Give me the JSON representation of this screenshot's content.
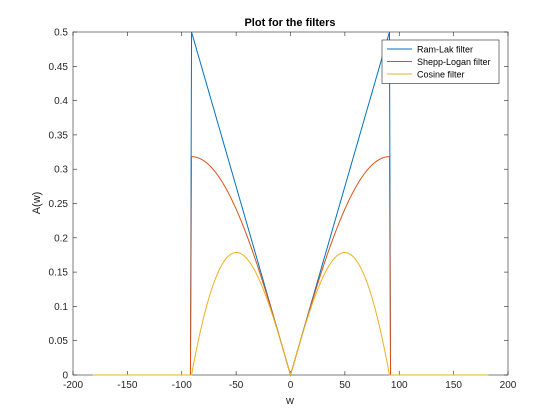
{
  "chart_data": {
    "type": "line",
    "title": "Plot for the filters",
    "xlabel": "w",
    "ylabel": "A(w)",
    "xlim": [
      -200,
      200
    ],
    "ylim": [
      0,
      0.5
    ],
    "x_ticks": [
      -200,
      -150,
      -100,
      -50,
      0,
      50,
      100,
      150,
      200
    ],
    "y_ticks": [
      0,
      0.05,
      0.1,
      0.15,
      0.2,
      0.25,
      0.3,
      0.35,
      0.4,
      0.45,
      0.5
    ],
    "x_tick_labels": [
      "-200",
      "-150",
      "-100",
      "-50",
      "0",
      "50",
      "100",
      "150",
      "200"
    ],
    "y_tick_labels": [
      "0",
      "0.05",
      "0.1",
      "0.15",
      "0.2",
      "0.25",
      "0.3",
      "0.35",
      "0.4",
      "0.45",
      "0.5"
    ],
    "grid": false,
    "legend_position": "top-right",
    "x_domain": [
      -182,
      182
    ],
    "cutoff": 91,
    "series": [
      {
        "name": "Ram-Lak filter",
        "color": "#0072BD",
        "x": [
          -182,
          -92,
          -91,
          -80,
          -70,
          -60,
          -50,
          -40,
          -30,
          -20,
          -10,
          0,
          10,
          20,
          30,
          40,
          50,
          60,
          70,
          80,
          91,
          92,
          182
        ],
        "y": [
          0,
          0,
          0.5,
          0.4396,
          0.3846,
          0.3297,
          0.2747,
          0.2198,
          0.1648,
          0.1099,
          0.0549,
          0,
          0.0549,
          0.1099,
          0.1648,
          0.2198,
          0.2747,
          0.3297,
          0.3846,
          0.4396,
          0.5,
          0,
          0
        ]
      },
      {
        "name": "Shepp-Logan filter",
        "color": "#D95319",
        "x": [
          -182,
          -92,
          -91,
          -80,
          -70,
          -60,
          -50,
          -40,
          -30,
          -20,
          -10,
          0,
          10,
          20,
          30,
          40,
          50,
          60,
          70,
          80,
          91,
          92,
          182
        ],
        "y": [
          0,
          0,
          0.3183,
          0.3127,
          0.298,
          0.2755,
          0.2464,
          0.2116,
          0.1727,
          0.1307,
          0.0884,
          0,
          0.0884,
          0.1307,
          0.1727,
          0.2116,
          0.2464,
          0.2755,
          0.298,
          0.3127,
          0.3183,
          0,
          0
        ]
      },
      {
        "name": "Cosine filter",
        "color": "#EDB120",
        "x": [
          -182,
          -92,
          -91,
          -80,
          -70,
          -60,
          -50,
          -40,
          -30,
          -20,
          -10,
          0,
          10,
          20,
          30,
          40,
          50,
          60,
          70,
          80,
          91,
          92,
          182
        ],
        "y": [
          0,
          0,
          0,
          0.0828,
          0.1374,
          0.1699,
          0.178,
          0.1693,
          0.1418,
          0.1035,
          0.0538,
          0,
          0.0538,
          0.1035,
          0.1418,
          0.1693,
          0.178,
          0.1699,
          0.1374,
          0.0828,
          0,
          0,
          0
        ]
      }
    ]
  }
}
